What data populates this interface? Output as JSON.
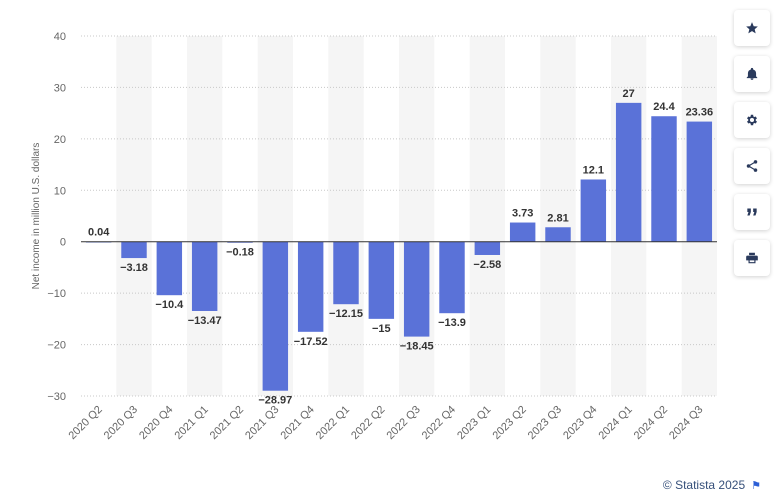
{
  "chart_data": {
    "type": "bar",
    "ylabel": "Net income in million U.S. dollars",
    "ylim": [
      -30,
      40
    ],
    "yticks": [
      40,
      30,
      20,
      10,
      0,
      -10,
      -20,
      -30
    ],
    "ytick_labels": [
      "40",
      "30",
      "20",
      "10",
      "0",
      "−10",
      "−20",
      "−30"
    ],
    "grid": true,
    "bar_color": "#5a72d8",
    "categories": [
      "2020 Q2",
      "2020 Q3",
      "2020 Q4",
      "2021 Q1",
      "2021 Q2",
      "2021 Q3",
      "2021 Q4",
      "2022 Q1",
      "2022 Q2",
      "2022 Q3",
      "2022 Q4",
      "2023 Q1",
      "2023 Q2",
      "2023 Q3",
      "2023 Q4",
      "2024 Q1",
      "2024 Q2",
      "2024 Q3"
    ],
    "values": [
      0.04,
      -3.18,
      -10.4,
      -13.47,
      -0.18,
      -28.97,
      -17.52,
      -12.15,
      -15,
      -18.45,
      -13.9,
      -2.58,
      3.73,
      2.81,
      12.1,
      27,
      24.4,
      23.36
    ],
    "value_labels": [
      "0.04",
      "−3.18",
      "−10.4",
      "−13.47",
      "−0.18",
      "−28.97",
      "−17.52",
      "−12.15",
      "−15",
      "−18.45",
      "−13.9",
      "−2.58",
      "3.73",
      "2.81",
      "12.1",
      "27",
      "24.4",
      "23.36"
    ]
  },
  "toolbar": {
    "buttons": [
      {
        "icon": "star-icon",
        "name": "favorite-button"
      },
      {
        "icon": "bell-icon",
        "name": "notification-button"
      },
      {
        "icon": "gear-icon",
        "name": "settings-button"
      },
      {
        "icon": "share-icon",
        "name": "share-button"
      },
      {
        "icon": "quote-icon",
        "name": "cite-button"
      },
      {
        "icon": "print-icon",
        "name": "print-button"
      }
    ]
  },
  "credit": {
    "text": "© Statista 2025",
    "flag_icon": "flag-icon"
  }
}
